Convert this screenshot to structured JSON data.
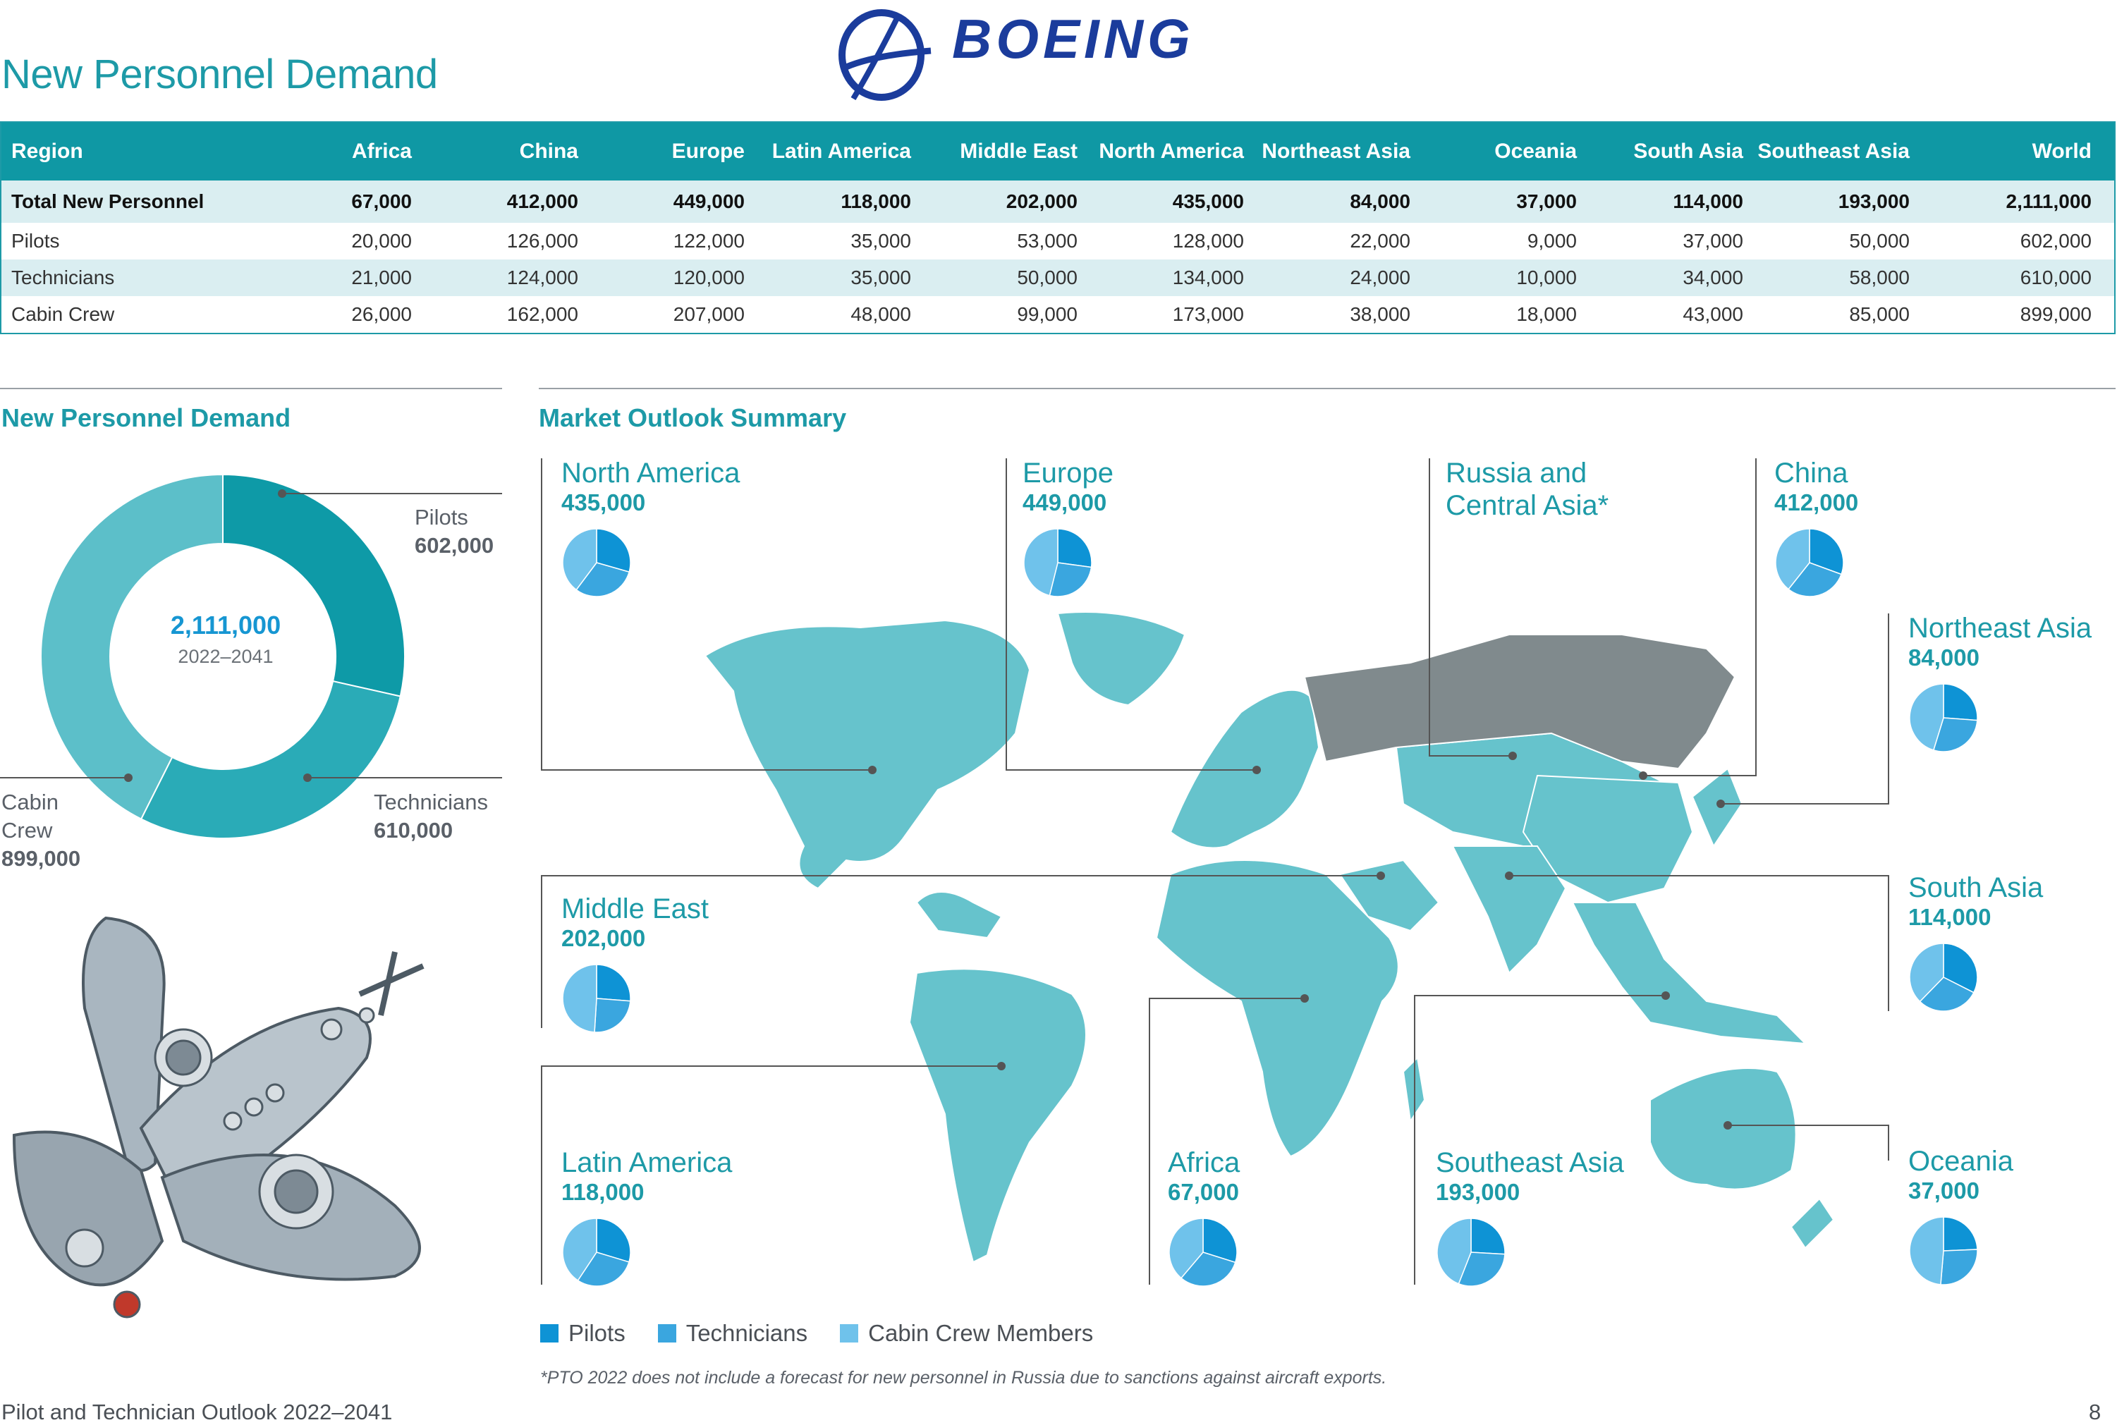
{
  "page_title": "New Personnel Demand",
  "brand": {
    "name": "BOEING",
    "color": "#1b3c9c"
  },
  "colors": {
    "teal": "#1d9aa7",
    "pilots": "#0e93d5",
    "technicians": "#3aa6df",
    "cabin": "#6fc2eb",
    "map": "#66c3cc",
    "russia": "#808a8d"
  },
  "table": {
    "headers": [
      "Region",
      "Africa",
      "China",
      "Europe",
      "Latin America",
      "Middle East",
      "North America",
      "Northeast Asia",
      "Oceania",
      "South Asia",
      "Southeast Asia",
      "World"
    ],
    "rows": [
      {
        "label": "Total New Personnel",
        "values": [
          "67,000",
          "412,000",
          "449,000",
          "118,000",
          "202,000",
          "435,000",
          "84,000",
          "37,000",
          "114,000",
          "193,000",
          "2,111,000"
        ]
      },
      {
        "label": "Pilots",
        "values": [
          "20,000",
          "126,000",
          "122,000",
          "35,000",
          "53,000",
          "128,000",
          "22,000",
          "9,000",
          "37,000",
          "50,000",
          "602,000"
        ]
      },
      {
        "label": "Technicians",
        "values": [
          "21,000",
          "124,000",
          "120,000",
          "35,000",
          "50,000",
          "134,000",
          "24,000",
          "10,000",
          "34,000",
          "58,000",
          "610,000"
        ]
      },
      {
        "label": "Cabin Crew",
        "values": [
          "26,000",
          "162,000",
          "207,000",
          "48,000",
          "99,000",
          "173,000",
          "38,000",
          "18,000",
          "43,000",
          "85,000",
          "899,000"
        ]
      }
    ]
  },
  "donut_section": {
    "heading": "New Personnel Demand",
    "center_value": "2,111,000",
    "center_sub": "2022–2041"
  },
  "map_section": {
    "heading": "Market Outlook Summary"
  },
  "legend": [
    "Pilots",
    "Technicians",
    "Cabin Crew Members"
  ],
  "regions": [
    {
      "name": "North America",
      "value": "435,000"
    },
    {
      "name": "Europe",
      "value": "449,000"
    },
    {
      "name": "Russia and Central Asia*",
      "value": ""
    },
    {
      "name": "China",
      "value": "412,000"
    },
    {
      "name": "Northeast Asia",
      "value": "84,000"
    },
    {
      "name": "Middle East",
      "value": "202,000"
    },
    {
      "name": "South Asia",
      "value": "114,000"
    },
    {
      "name": "Latin America",
      "value": "118,000"
    },
    {
      "name": "Africa",
      "value": "67,000"
    },
    {
      "name": "Southeast Asia",
      "value": "193,000"
    },
    {
      "name": "Oceania",
      "value": "37,000"
    }
  ],
  "footnote": "*PTO 2022 does not include a forecast for new personnel in Russia due to sanctions against aircraft exports.",
  "footer": {
    "left": "Pilot and Technician Outlook 2022–2041",
    "page": "8"
  },
  "chart_data": [
    {
      "type": "pie",
      "title": "New Personnel Demand",
      "labels": [
        "Pilots",
        "Technicians",
        "Cabin Crew"
      ],
      "values": [
        602000,
        610000,
        899000
      ],
      "value_labels": [
        "602,000",
        "610,000",
        "899,000"
      ]
    },
    {
      "type": "pie",
      "title": "Market Outlook Summary",
      "labels": [
        "Pilots",
        "Technicians",
        "Cabin Crew Members"
      ],
      "regions": [
        {
          "region": "North America",
          "values": [
            128000,
            134000,
            173000
          ]
        },
        {
          "region": "Europe",
          "values": [
            122000,
            120000,
            207000
          ]
        },
        {
          "region": "China",
          "values": [
            126000,
            124000,
            162000
          ]
        },
        {
          "region": "Northeast Asia",
          "values": [
            22000,
            24000,
            38000
          ]
        },
        {
          "region": "Middle East",
          "values": [
            53000,
            50000,
            99000
          ]
        },
        {
          "region": "South Asia",
          "values": [
            37000,
            34000,
            43000
          ]
        },
        {
          "region": "Latin America",
          "values": [
            35000,
            35000,
            48000
          ]
        },
        {
          "region": "Africa",
          "values": [
            20000,
            21000,
            26000
          ]
        },
        {
          "region": "Southeast Asia",
          "values": [
            50000,
            58000,
            85000
          ]
        },
        {
          "region": "Oceania",
          "values": [
            9000,
            10000,
            18000
          ]
        }
      ]
    }
  ]
}
